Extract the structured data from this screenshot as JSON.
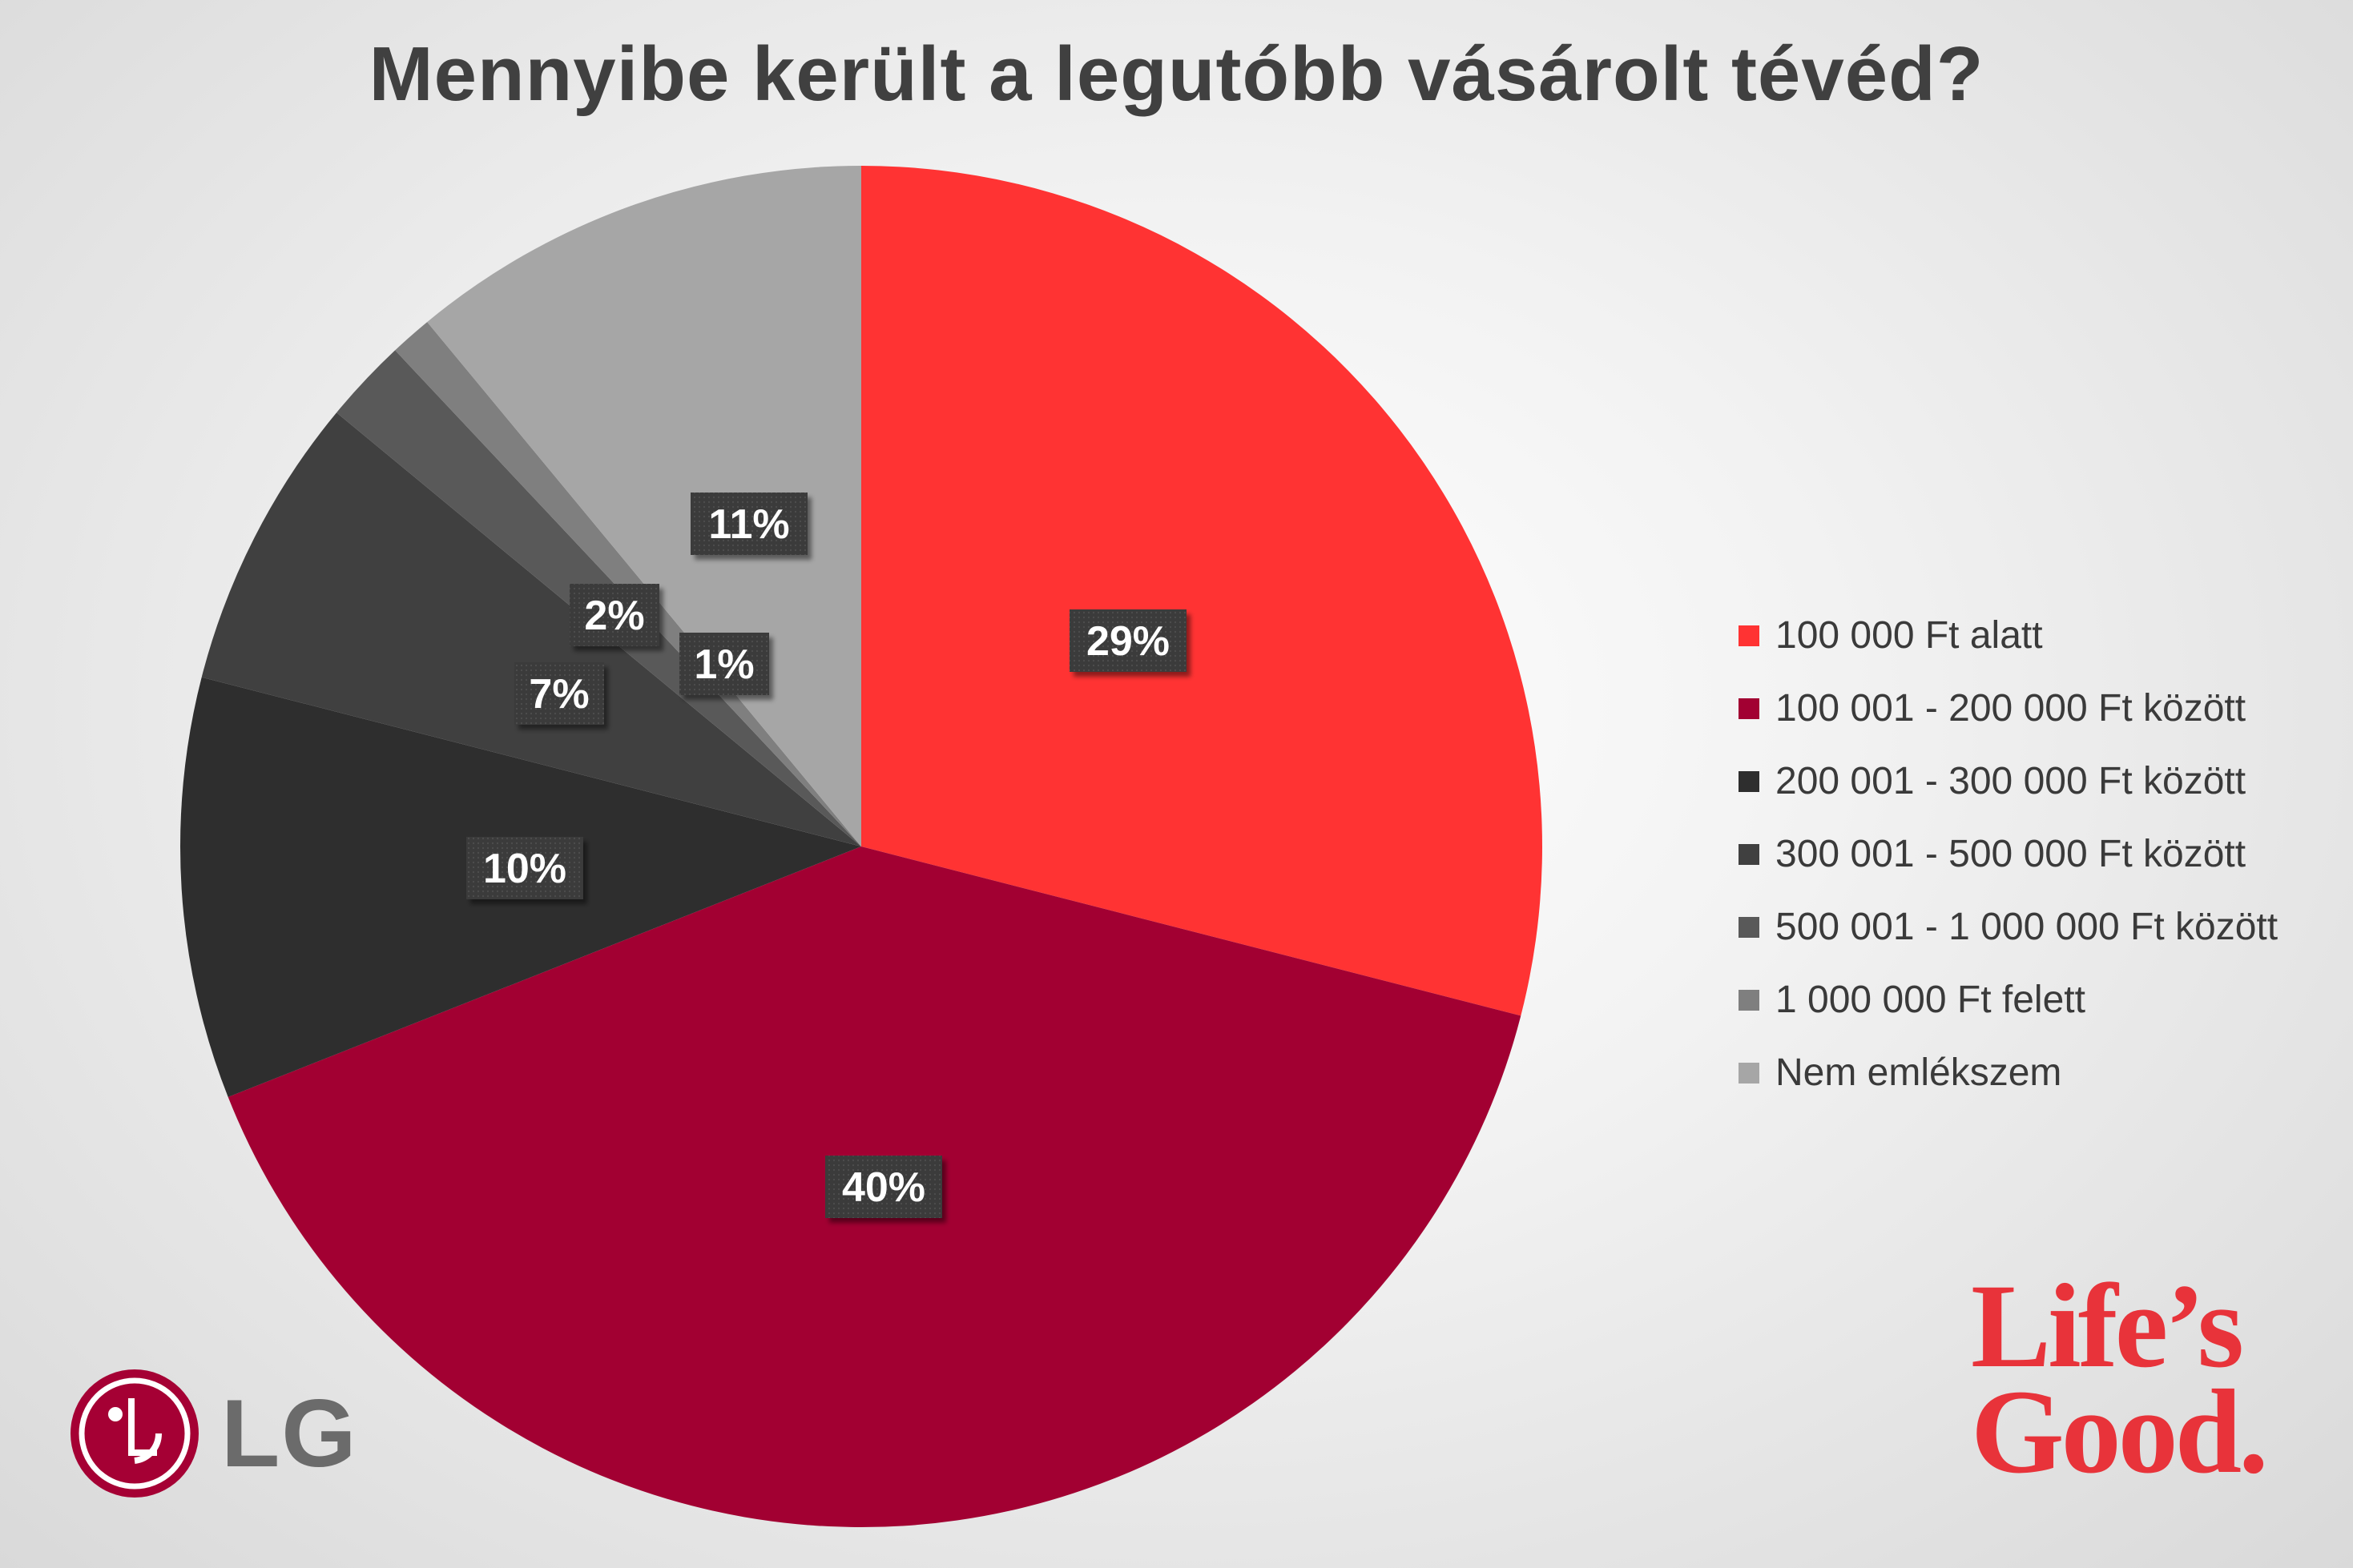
{
  "chart_data": {
    "type": "pie",
    "title": "Mennyibe került a legutóbb vásárolt tévéd?",
    "start_angle_deg": 0,
    "direction": "clockwise",
    "slices": [
      {
        "label": "100 000 Ft alatt",
        "value": 29,
        "display": "29%",
        "color": "#ff3333"
      },
      {
        "label": "100 001 - 200 000 Ft között",
        "value": 40,
        "display": "40%",
        "color": "#a20032"
      },
      {
        "label": "200 001 - 300 000 Ft között",
        "value": 10,
        "display": "10%",
        "color": "#2e2e2e"
      },
      {
        "label": "300 001 - 500 000 Ft között",
        "value": 7,
        "display": "7%",
        "color": "#404040"
      },
      {
        "label": "500 001 - 1 000 000 Ft között",
        "value": 2,
        "display": "2%",
        "color": "#595959"
      },
      {
        "label": "1 000 000 Ft felett",
        "value": 1,
        "display": "1%",
        "color": "#7f7f7f"
      },
      {
        "label": "Nem emlékszem",
        "value": 11,
        "display": "11%",
        "color": "#a6a6a6"
      }
    ],
    "legend_position": "right",
    "label_box_color": "#3c3c3c"
  },
  "branding": {
    "lg_logo_text": "LG",
    "slogan_line1": "Life’s",
    "slogan_line2": "Good.",
    "lg_color": "#a50034",
    "slogan_color": "#e8333a"
  }
}
